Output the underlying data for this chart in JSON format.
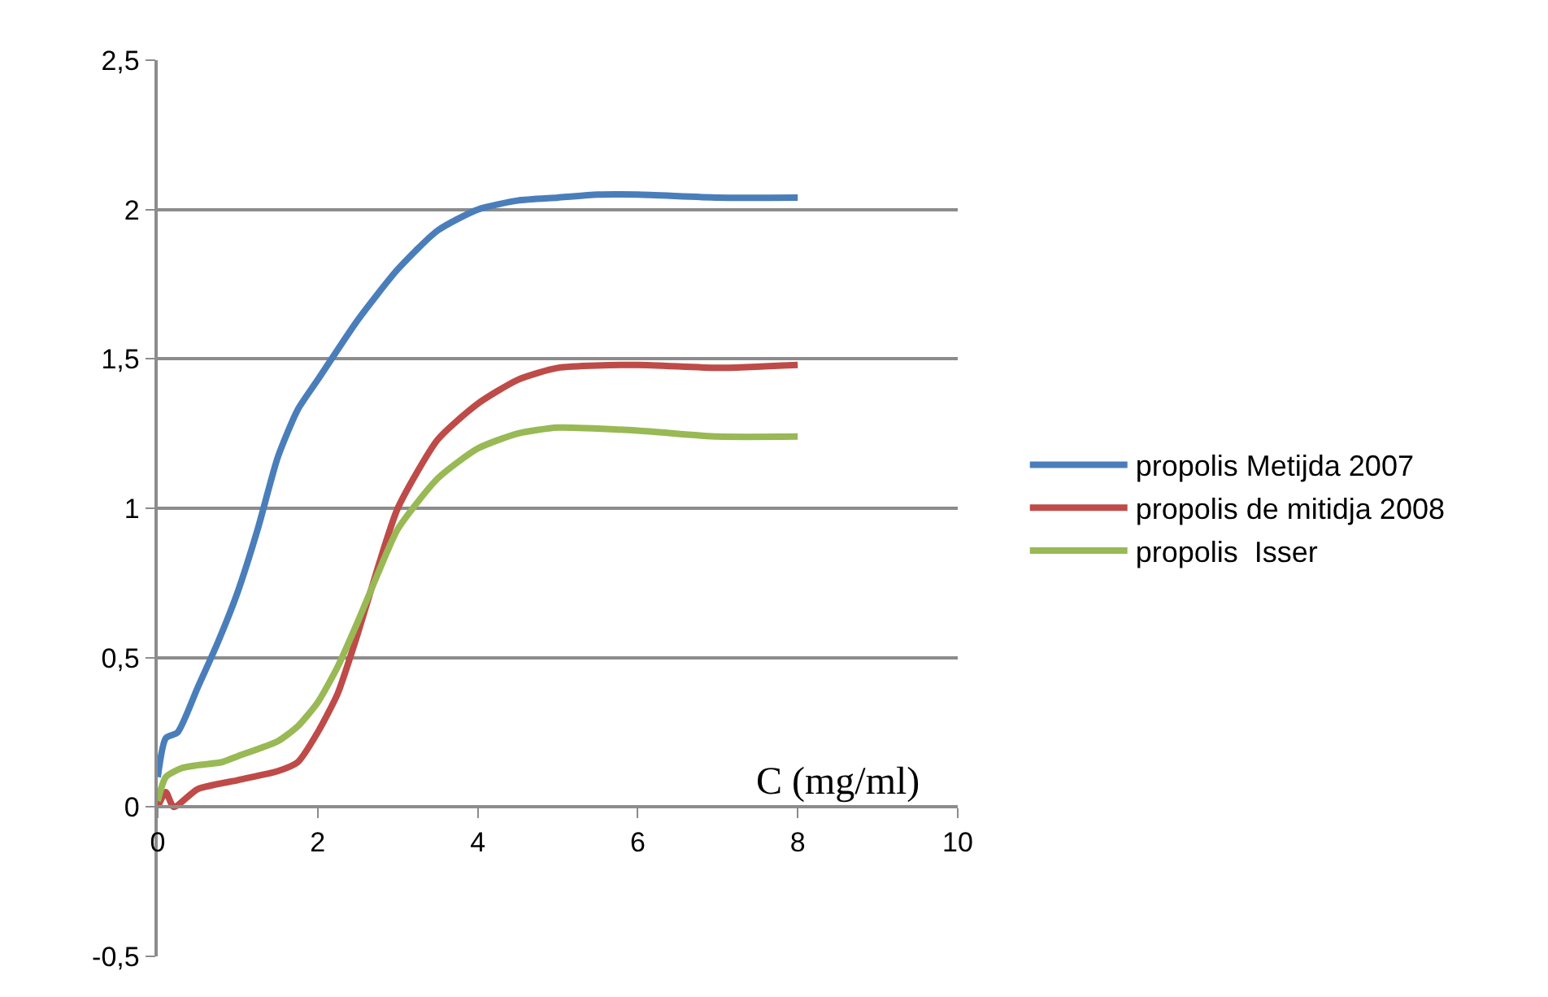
{
  "chart_data": {
    "type": "line",
    "xlabel": "C (mg/ml)",
    "xlim": [
      0,
      10
    ],
    "xticks": [
      0,
      2,
      4,
      6,
      8,
      10
    ],
    "ylim": [
      -0.5,
      2.5
    ],
    "yticks": [
      {
        "value": -0.5,
        "label": "-0,5"
      },
      0,
      {
        "value": 0.5,
        "label": "0,5"
      },
      1,
      {
        "value": 1.5,
        "label": "1,5"
      },
      2,
      {
        "value": 2.5,
        "label": "2,5"
      }
    ],
    "grid": "y",
    "legend": "right",
    "marker": "none",
    "line_style": "solid",
    "series": [
      {
        "name": "propolis Metijda 2007",
        "color": "#4a7ebb",
        "x": [
          0,
          0.1,
          0.25,
          0.5,
          0.75,
          1,
          1.25,
          1.5,
          1.75,
          2,
          2.5,
          3,
          3.5,
          4,
          4.5,
          5,
          5.5,
          6,
          7,
          8
        ],
        "values": [
          0.1,
          0.23,
          0.25,
          0.4,
          0.55,
          0.72,
          0.93,
          1.17,
          1.33,
          1.43,
          1.63,
          1.8,
          1.93,
          2.0,
          2.03,
          2.04,
          2.05,
          2.05,
          2.04,
          2.04
        ]
      },
      {
        "name": "propolis de mitidja 2008",
        "color": "#be4b48",
        "x": [
          0,
          0.1,
          0.2,
          0.5,
          1,
          1.5,
          1.75,
          2,
          2.25,
          2.5,
          2.75,
          3,
          3.5,
          4,
          4.5,
          5,
          6,
          7,
          8
        ],
        "values": [
          0,
          0.05,
          0,
          0.06,
          0.09,
          0.12,
          0.15,
          0.25,
          0.38,
          0.58,
          0.8,
          1.0,
          1.23,
          1.35,
          1.43,
          1.47,
          1.48,
          1.47,
          1.48
        ]
      },
      {
        "name": "propolis  Isser",
        "color": "#98b954",
        "x": [
          0,
          0.1,
          0.3,
          0.5,
          0.8,
          1,
          1.5,
          1.75,
          2,
          2.25,
          2.5,
          2.75,
          3,
          3.5,
          4,
          4.5,
          5,
          6,
          7,
          8
        ],
        "values": [
          0.02,
          0.1,
          0.13,
          0.14,
          0.15,
          0.17,
          0.22,
          0.27,
          0.35,
          0.47,
          0.62,
          0.78,
          0.93,
          1.1,
          1.2,
          1.25,
          1.27,
          1.26,
          1.24,
          1.24
        ]
      }
    ]
  }
}
